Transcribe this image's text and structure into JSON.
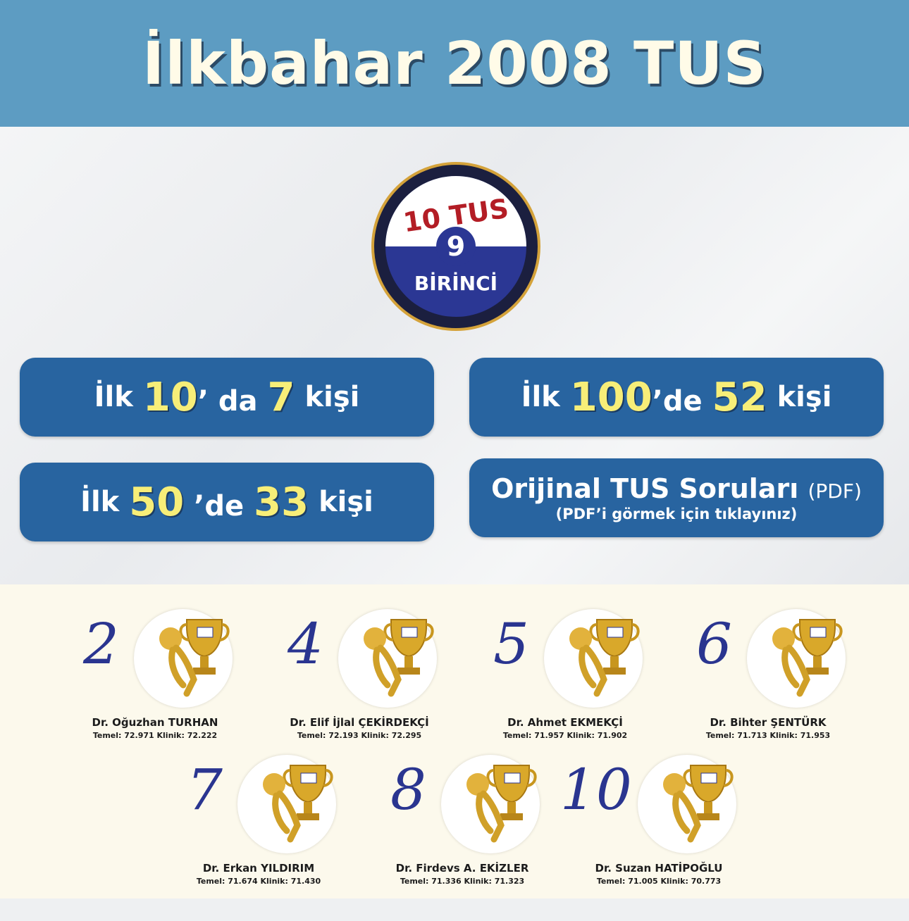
{
  "header": {
    "title": "İlkbahar 2008 TUS"
  },
  "badge": {
    "top": "10 TUS",
    "number": "9",
    "bottom": "BİRİNCİ"
  },
  "stats": [
    {
      "pre": "İlk",
      "rank": "10",
      "suffix": "’ da",
      "count": "7",
      "post": "kişi"
    },
    {
      "pre": "İlk",
      "rank": "100",
      "suffix": "’de",
      "count": "52",
      "post": "kişi"
    },
    {
      "pre": "İlk",
      "rank": "50",
      "suffix": "’de",
      "count": "33",
      "post": "kişi"
    }
  ],
  "pdf": {
    "title": "Orijinal TUS Soruları",
    "tag": "(PDF)",
    "subtitle": "(PDF’i görmek için tıklayınız)"
  },
  "winners": [
    {
      "rank": "2",
      "name": "Dr. Oğuzhan TURHAN",
      "scores": "Temel: 72.971 Klinik: 72.222"
    },
    {
      "rank": "4",
      "name": "Dr. Elif İjlal ÇEKİRDEKÇİ",
      "scores": "Temel: 72.193 Klinik: 72.295"
    },
    {
      "rank": "5",
      "name": "Dr. Ahmet EKMEKÇİ",
      "scores": "Temel: 71.957 Klinik: 71.902"
    },
    {
      "rank": "6",
      "name": "Dr. Bihter ŞENTÜRK",
      "scores": "Temel: 71.713 Klinik: 71.953"
    },
    {
      "rank": "7",
      "name": "Dr. Erkan YILDIRIM",
      "scores": "Temel: 71.674 Klinik: 71.430"
    },
    {
      "rank": "8",
      "name": "Dr. Firdevs A. EKİZLER",
      "scores": "Temel: 71.336 Klinik: 71.323"
    },
    {
      "rank": "10",
      "name": "Dr. Suzan HATİPOĞLU",
      "scores": "Temel: 71.005 Klinik: 70.773"
    }
  ],
  "colors": {
    "header": "#5d9cc2",
    "box": "#2864a0",
    "highlight": "#f7ee78",
    "rank": "#2a3590",
    "badge_red": "#b31d25"
  }
}
